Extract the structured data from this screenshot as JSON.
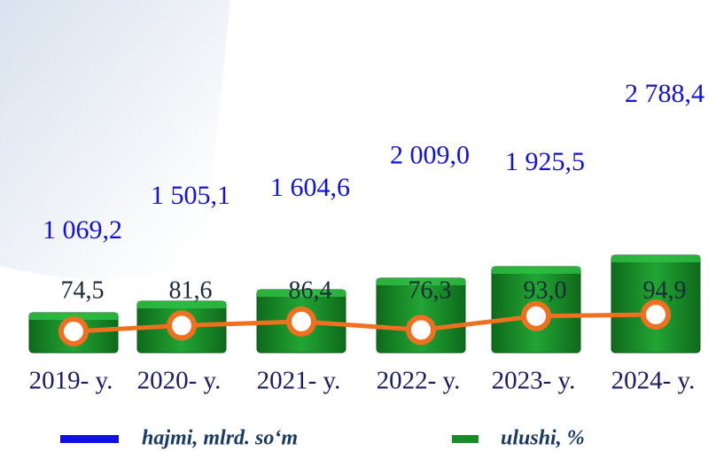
{
  "chart_data": {
    "type": "volume_share",
    "categories": [
      "2019- y.",
      "2020- y.",
      "2021- y.",
      "2022- y.",
      "2023- y.",
      "2024- y."
    ],
    "series": [
      {
        "name": "hajmi, mlrd. so‘m",
        "color": "#1010e0",
        "values": [
          1069.2,
          1505.1,
          1604.6,
          2009.0,
          1925.5,
          2788.4
        ],
        "value_labels": [
          "1 069,2",
          "1 505,1",
          "1 604,6",
          "2 009,0",
          "1 925,5",
          "2 788,4"
        ]
      },
      {
        "name": "ulushi, %",
        "color": "#1a8a2a",
        "line_color": "#f07020",
        "values": [
          74.5,
          81.6,
          86.4,
          76.3,
          93.0,
          94.9
        ],
        "value_labels": [
          "74,5",
          "81,6",
          "86,4",
          "76,3",
          "93,0",
          "94,9"
        ]
      }
    ]
  }
}
